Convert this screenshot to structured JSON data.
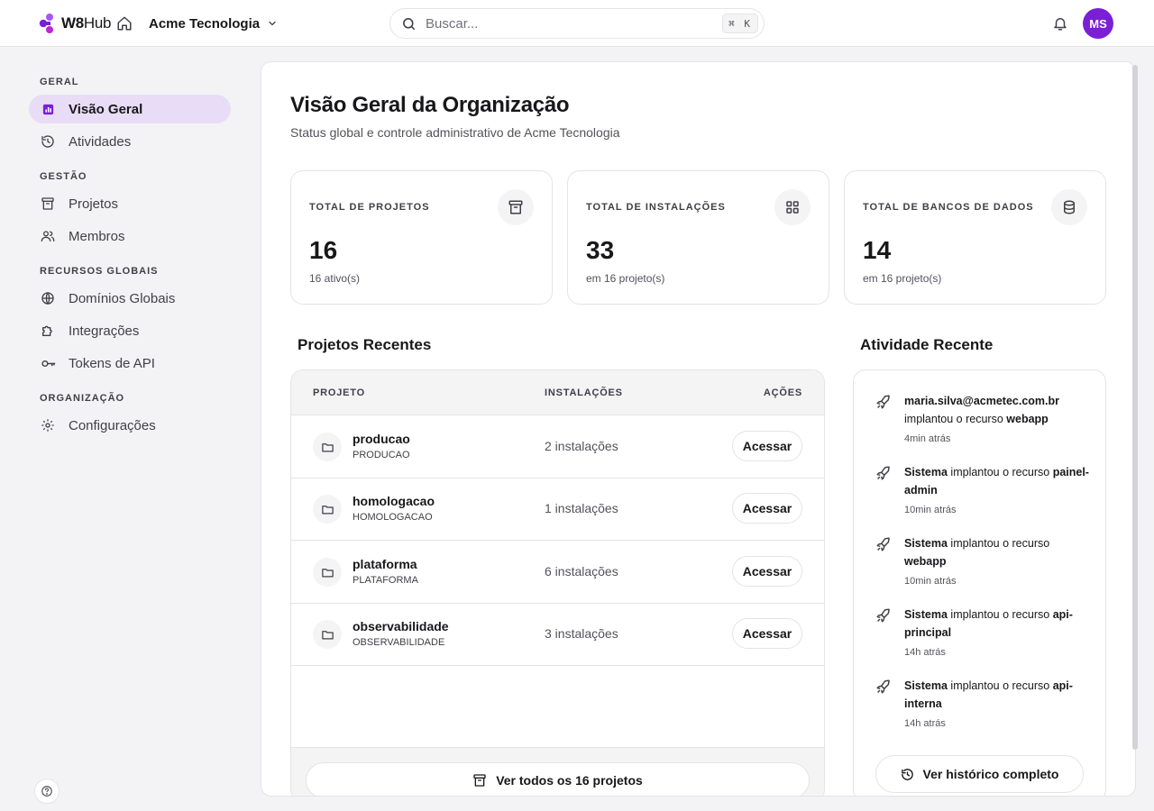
{
  "topbar": {
    "logo_bold": "W8",
    "logo_rest": "Hub",
    "org_name": "Acme Tecnologia",
    "search_placeholder": "Buscar...",
    "search_shortcut": "⌘ K",
    "avatar_initials": "MS"
  },
  "sidebar": {
    "sections": [
      {
        "label": "GERAL",
        "items": [
          {
            "label": "Visão Geral",
            "icon": "chart-icon",
            "active": true
          },
          {
            "label": "Atividades",
            "icon": "history-icon",
            "active": false
          }
        ]
      },
      {
        "label": "GESTÃO",
        "items": [
          {
            "label": "Projetos",
            "icon": "archive-icon",
            "active": false
          },
          {
            "label": "Membros",
            "icon": "users-icon",
            "active": false
          }
        ]
      },
      {
        "label": "RECURSOS GLOBAIS",
        "items": [
          {
            "label": "Domínios Globais",
            "icon": "globe-icon",
            "active": false
          },
          {
            "label": "Integrações",
            "icon": "puzzle-icon",
            "active": false
          },
          {
            "label": "Tokens de API",
            "icon": "key-icon",
            "active": false
          }
        ]
      },
      {
        "label": "ORGANIZAÇÃO",
        "items": [
          {
            "label": "Configurações",
            "icon": "gear-icon",
            "active": false
          }
        ]
      }
    ]
  },
  "main": {
    "title": "Visão Geral da Organização",
    "subtitle": "Status global e controle administrativo de Acme Tecnologia",
    "stats": [
      {
        "label": "TOTAL DE PROJETOS",
        "value": "16",
        "sub": "16 ativo(s)",
        "icon": "archive-icon"
      },
      {
        "label": "TOTAL DE INSTALAÇÕES",
        "value": "33",
        "sub": "em 16 projeto(s)",
        "icon": "grid-icon"
      },
      {
        "label": "TOTAL DE BANCOS DE DADOS",
        "value": "14",
        "sub": "em 16 projeto(s)",
        "icon": "database-icon"
      }
    ],
    "projects": {
      "title": "Projetos Recentes",
      "columns": [
        "PROJETO",
        "INSTALAÇÕES",
        "AÇÕES"
      ],
      "rows": [
        {
          "name": "producao",
          "slug": "PRODUCAO",
          "installs": "2 instalações",
          "action": "Acessar"
        },
        {
          "name": "homologacao",
          "slug": "HOMOLOGACAO",
          "installs": "1 instalações",
          "action": "Acessar"
        },
        {
          "name": "plataforma",
          "slug": "PLATAFORMA",
          "installs": "6 instalações",
          "action": "Acessar"
        },
        {
          "name": "observabilidade",
          "slug": "OBSERVABILIDADE",
          "installs": "3 instalações",
          "action": "Acessar"
        }
      ],
      "view_all": "Ver todos os 16 projetos"
    },
    "activity": {
      "title": "Atividade Recente",
      "items": [
        {
          "actor": "maria.silva@acmetec.com.br",
          "verb": " implantou o recurso ",
          "resource": "webapp",
          "time": "4min atrás"
        },
        {
          "actor": "Sistema",
          "verb": " implantou o recurso ",
          "resource": "painel-admin",
          "time": "10min atrás"
        },
        {
          "actor": "Sistema",
          "verb": " implantou o recurso ",
          "resource": "webapp",
          "time": "10min atrás"
        },
        {
          "actor": "Sistema",
          "verb": " implantou o recurso ",
          "resource": "api-principal",
          "time": "14h atrás"
        },
        {
          "actor": "Sistema",
          "verb": " implantou o recurso ",
          "resource": "api-interna",
          "time": "14h atrás"
        }
      ],
      "history_button": "Ver histórico completo"
    }
  },
  "colors": {
    "brand": "#7a1fd6",
    "active_bg": "#e9dcf6",
    "border": "#e4e4e7",
    "page_bg": "#f3f3f6"
  }
}
